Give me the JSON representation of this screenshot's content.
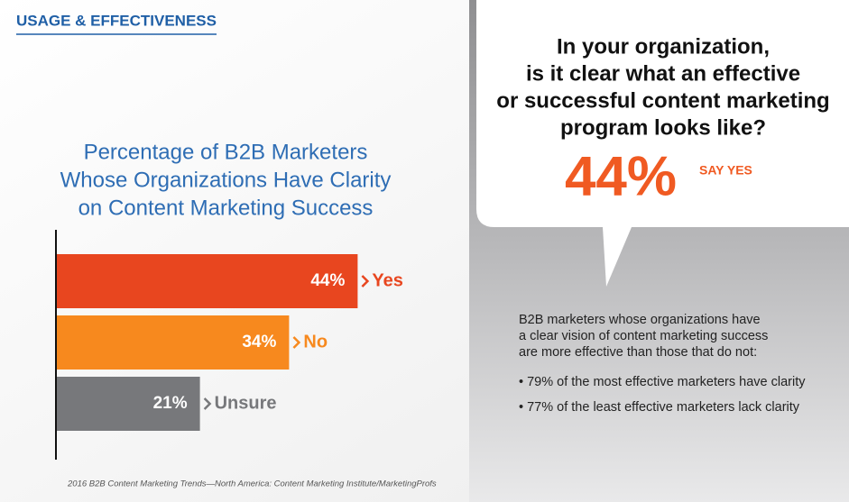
{
  "header": {
    "title": "USAGE & EFFECTIVENESS"
  },
  "chart_data": {
    "type": "hbar",
    "title": [
      "Percentage of B2B Marketers",
      "Whose Organizations Have Clarity",
      "on Content Marketing Success"
    ],
    "categories": [
      "Yes",
      "No",
      "Unsure"
    ],
    "values": [
      44,
      34,
      21
    ],
    "value_labels": [
      "44%",
      "34%",
      "21%"
    ],
    "colors": [
      "#e8461f",
      "#f7891e",
      "#77787b"
    ]
  },
  "source": "2016 B2B Content Marketing Trends—North America: Content Marketing Institute/MarketingProfs",
  "callout": {
    "question": [
      "In your organization,",
      "is it clear what an effective",
      "or successful content marketing",
      "program looks like?"
    ],
    "stat": "44%",
    "stat_label": "SAY YES"
  },
  "notes": {
    "intro": [
      "B2B marketers whose organizations have",
      "a clear vision of content marketing success",
      "are more effective than those that do not:"
    ],
    "bullets": [
      "• 79% of the most effective marketers have clarity",
      "• 77% of the least effective marketers lack clarity"
    ]
  }
}
